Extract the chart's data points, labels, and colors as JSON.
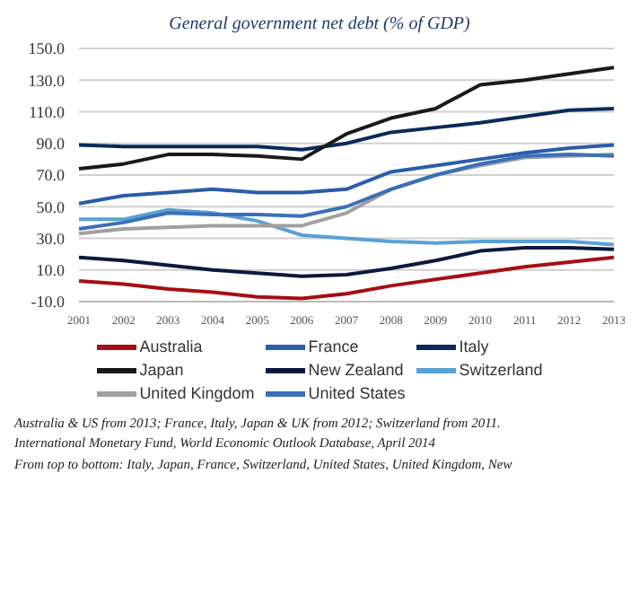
{
  "chart_data": {
    "type": "line",
    "title": "General government net debt (% of GDP)",
    "categories": [
      "2001",
      "2002",
      "2003",
      "2004",
      "2005",
      "2006",
      "2007",
      "2008",
      "2009",
      "2010",
      "2011",
      "2012",
      "2013"
    ],
    "series": [
      {
        "name": "Australia",
        "color": "#a50f15",
        "values": [
          3,
          1,
          -2,
          -4,
          -7,
          -8,
          -5,
          0,
          4,
          8,
          12,
          15,
          18
        ]
      },
      {
        "name": "France",
        "color": "#2a5caa",
        "values": [
          52,
          57,
          59,
          61,
          59,
          59,
          61,
          72,
          76,
          80,
          84,
          87,
          89
        ]
      },
      {
        "name": "Italy",
        "color": "#0b2a5b",
        "values": [
          89,
          88,
          88,
          88,
          88,
          86,
          90,
          97,
          100,
          103,
          107,
          111,
          112
        ]
      },
      {
        "name": "Japan",
        "color": "#1a1a1a",
        "values": [
          74,
          77,
          83,
          83,
          82,
          80,
          96,
          106,
          112,
          127,
          130,
          134,
          138
        ]
      },
      {
        "name": "New Zealand",
        "color": "#0a1a3c",
        "values": [
          18,
          16,
          13,
          10,
          8,
          6,
          7,
          11,
          16,
          22,
          24,
          24,
          23
        ]
      },
      {
        "name": "Switzerland",
        "color": "#5aa0d6",
        "values": [
          42,
          42,
          48,
          46,
          41,
          32,
          30,
          28,
          27,
          28,
          28,
          28,
          26
        ]
      },
      {
        "name": "United Kingdom",
        "color": "#a0a0a0",
        "values": [
          33,
          36,
          37,
          38,
          38,
          38,
          46,
          61,
          70,
          76,
          81,
          82,
          83
        ]
      },
      {
        "name": "United States",
        "color": "#3a70b8",
        "values": [
          36,
          40,
          46,
          45,
          45,
          44,
          50,
          61,
          70,
          77,
          82,
          83,
          82
        ]
      }
    ],
    "ylim": [
      -10,
      150
    ],
    "yticks": [
      {
        "value": -10,
        "label": "-10.0"
      },
      {
        "value": 10,
        "label": "10.0"
      },
      {
        "value": 30,
        "label": "30.0"
      },
      {
        "value": 50,
        "label": "50.0"
      },
      {
        "value": 70,
        "label": "70.0"
      },
      {
        "value": 90,
        "label": "90.0"
      },
      {
        "value": 110,
        "label": "110.0"
      },
      {
        "value": 130,
        "label": "130.0"
      },
      {
        "value": 150,
        "label": "150.0"
      }
    ],
    "grid": "y",
    "legend": "bottom",
    "marker": "none",
    "line_style": "solid",
    "annotations": [
      "Australia & US from 2013; France, Italy, Japan & UK from 2012; Switzerland from 2011.",
      "International Monetary Fund, World Economic Outlook Database, April 2014",
      "From top to bottom: Italy, Japan, France, Switzerland, United States, United Kingdom, New"
    ]
  }
}
